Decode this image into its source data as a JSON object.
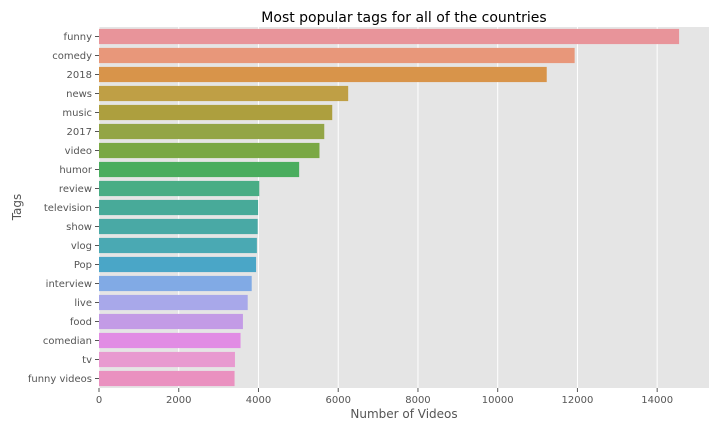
{
  "chart_data": {
    "type": "bar",
    "orientation": "horizontal",
    "title": "Most popular tags for all of the countries",
    "xlabel": "Number of Videos",
    "ylabel": "Tags",
    "xlim": [
      0,
      15300
    ],
    "xticks": [
      0,
      2000,
      4000,
      6000,
      8000,
      10000,
      12000,
      14000
    ],
    "grid": true,
    "categories": [
      "funny",
      "comedy",
      "2018",
      "news",
      "music",
      "2017",
      "video",
      "humor",
      "review",
      "television",
      "show",
      "vlog",
      "Pop",
      "interview",
      "live",
      "food",
      "comedian",
      "tv",
      "funny videos"
    ],
    "values": [
      14550,
      11930,
      11230,
      6250,
      5850,
      5650,
      5530,
      5020,
      4020,
      3990,
      3980,
      3960,
      3940,
      3830,
      3730,
      3610,
      3550,
      3410,
      3400
    ],
    "colors": [
      "#e8949a",
      "#e8977a",
      "#d8944a",
      "#bf9f45",
      "#ad9f3e",
      "#93a546",
      "#7aa844",
      "#4aad5e",
      "#49ad85",
      "#48aa99",
      "#49a9a5",
      "#4aa9b3",
      "#4aa6c7",
      "#81aae5",
      "#a8a8ea",
      "#c39be6",
      "#e18ce4",
      "#e89ad0",
      "#ea91c0"
    ]
  }
}
